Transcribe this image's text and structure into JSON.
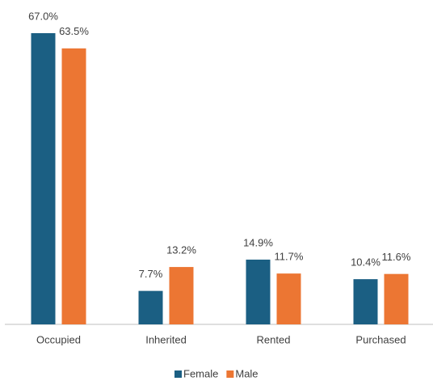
{
  "chart_data": {
    "type": "bar",
    "categories": [
      "Occupied",
      "Inherited",
      "Rented",
      "Purchased"
    ],
    "series": [
      {
        "name": "Female",
        "color": "#1b5f83",
        "values": [
          67.0,
          7.7,
          14.9,
          10.4
        ],
        "value_labels": [
          "67.0%",
          "7.7%",
          "14.9%",
          "10.4%"
        ]
      },
      {
        "name": "Male",
        "color": "#ec7633",
        "values": [
          63.5,
          13.2,
          11.7,
          11.6
        ],
        "value_labels": [
          "63.5%",
          "13.2%",
          "11.7%",
          "11.6%"
        ]
      }
    ],
    "legend": "bottom"
  }
}
